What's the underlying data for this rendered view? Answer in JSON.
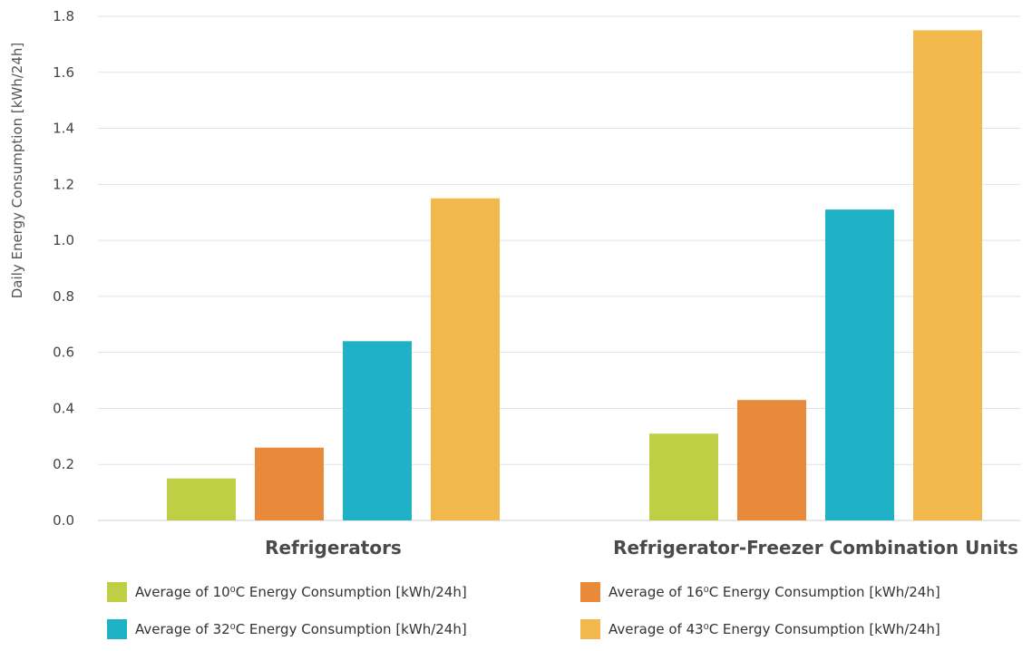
{
  "chart_data": {
    "type": "bar",
    "title": "",
    "xlabel": "",
    "ylabel": "Daily Energy Consumption [kWh/24h]",
    "ylim": [
      0,
      1.8
    ],
    "yticks": [
      "0.0",
      "0.2",
      "0.4",
      "0.6",
      "0.8",
      "1.0",
      "1.2",
      "1.4",
      "1.6",
      "1.8"
    ],
    "categories": [
      "Refrigerators",
      "Refrigerator-Freezer Combination Units"
    ],
    "grid": true,
    "legend_position": "bottom",
    "series": [
      {
        "name": "Average of 10⁰C Energy Consumption [kWh/24h]",
        "color": "#BECE45",
        "values": [
          0.15,
          0.31
        ]
      },
      {
        "name": "Average of 16⁰C Energy Consumption [kWh/24h]",
        "color": "#E98A3A",
        "values": [
          0.26,
          0.43
        ]
      },
      {
        "name": "Average of 32⁰C Energy Consumption [kWh/24h]",
        "color": "#1FB2C6",
        "values": [
          0.64,
          1.11
        ]
      },
      {
        "name": "Average of 43⁰C Energy Consumption [kWh/24h]",
        "color": "#F2B84B",
        "values": [
          1.15,
          1.75
        ]
      }
    ]
  }
}
